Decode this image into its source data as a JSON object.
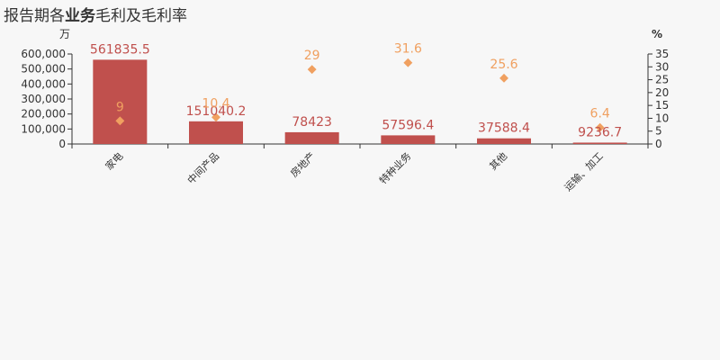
{
  "title": {
    "prefix": "报告期各",
    "emphasis": "业务",
    "suffix": "毛利及毛利率"
  },
  "chart_data": {
    "type": "bar",
    "title": "报告期各业务毛利及毛利率",
    "categories": [
      "家电",
      "中间产品",
      "房地产",
      "特种业务",
      "其他",
      "运输、加工"
    ],
    "series": [
      {
        "type": "bar",
        "axis": "left",
        "values": [
          561835.5,
          151040.2,
          78423,
          57596.4,
          37588.4,
          9236.7
        ],
        "labels": [
          "561835.5",
          "151040.2",
          "78423",
          "57596.4",
          "37588.4",
          "9236.7"
        ],
        "color": "#c0504d"
      },
      {
        "type": "scatter",
        "axis": "right",
        "values": [
          9,
          10.4,
          29,
          31.6,
          25.6,
          6.4
        ],
        "labels": [
          "9",
          "10.4",
          "29",
          "31.6",
          "25.6",
          "6.4"
        ],
        "color": "#f0a060"
      }
    ],
    "y_left": {
      "unit": "万",
      "min": 0,
      "max": 600000,
      "step": 100000,
      "ticks": [
        "0",
        "100,000",
        "200,000",
        "300,000",
        "400,000",
        "500,000",
        "600,000"
      ]
    },
    "y_right": {
      "unit": "%",
      "min": 0,
      "max": 35,
      "step": 5,
      "ticks": [
        "0",
        "5",
        "10",
        "15",
        "20",
        "25",
        "30",
        "35"
      ]
    },
    "grid": false
  }
}
